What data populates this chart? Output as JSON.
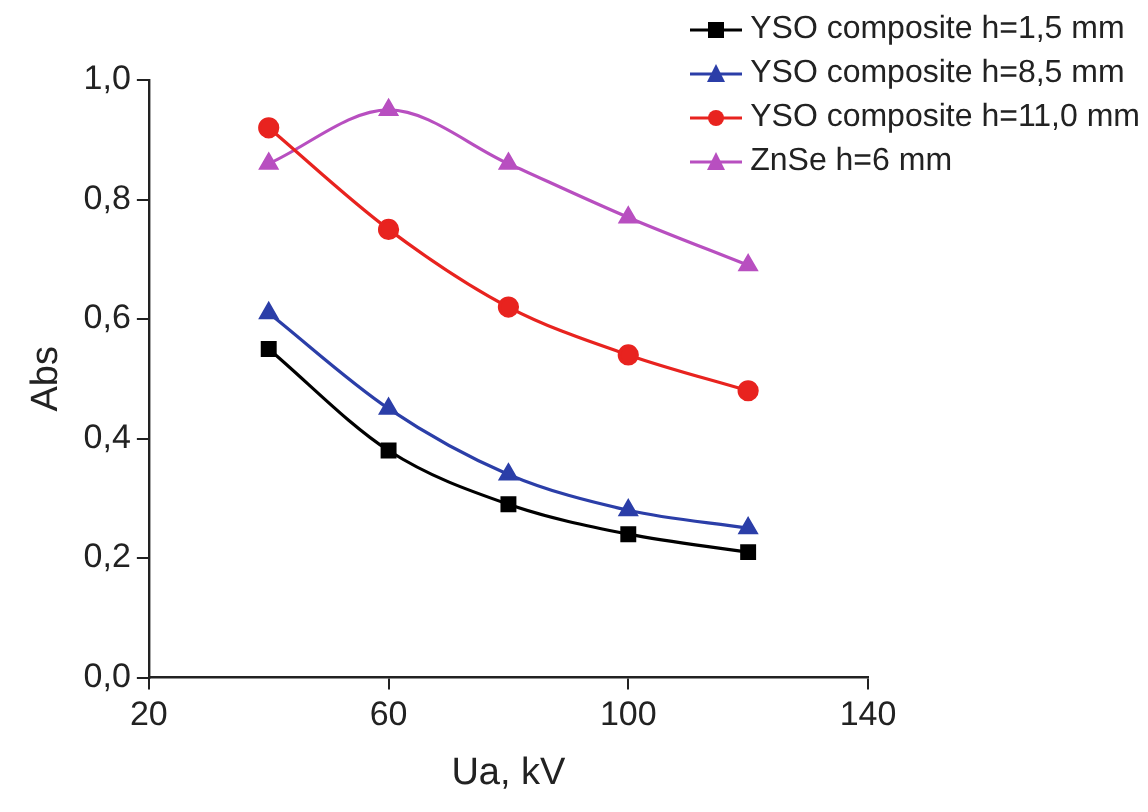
{
  "chart_data": {
    "type": "line",
    "xlabel": "Ua, kV",
    "ylabel": "Abs",
    "x": [
      40,
      60,
      80,
      100,
      120
    ],
    "series": [
      {
        "name": "YSO composite h=1,5 mm",
        "color": "#000000",
        "marker": "square",
        "values": [
          0.55,
          0.38,
          0.29,
          0.24,
          0.21
        ]
      },
      {
        "name": "YSO composite h=8,5 mm",
        "color": "#2b3ea8",
        "marker": "triangle",
        "values": [
          0.61,
          0.45,
          0.34,
          0.28,
          0.25
        ]
      },
      {
        "name": "YSO composite h=11,0 mm",
        "color": "#e8231f",
        "marker": "circle",
        "values": [
          0.92,
          0.75,
          0.62,
          0.54,
          0.48
        ]
      },
      {
        "name": "ZnSe h=6 mm",
        "color": "#b84fc0",
        "marker": "triangle",
        "values": [
          0.86,
          0.95,
          0.86,
          0.77,
          0.69
        ]
      }
    ],
    "xlim": [
      20,
      140
    ],
    "xticks": [
      20,
      60,
      100,
      140
    ],
    "ylim": [
      0,
      1
    ],
    "yticks": [
      {
        "value": 0,
        "label": "0,0"
      },
      {
        "value": 0.2,
        "label": "0,2"
      },
      {
        "value": 0.4,
        "label": "0,4"
      },
      {
        "value": 0.6,
        "label": "0,6"
      },
      {
        "value": 0.8,
        "label": "0,8"
      },
      {
        "value": 1,
        "label": "1,0"
      }
    ],
    "grid": false,
    "legend": "top right"
  }
}
